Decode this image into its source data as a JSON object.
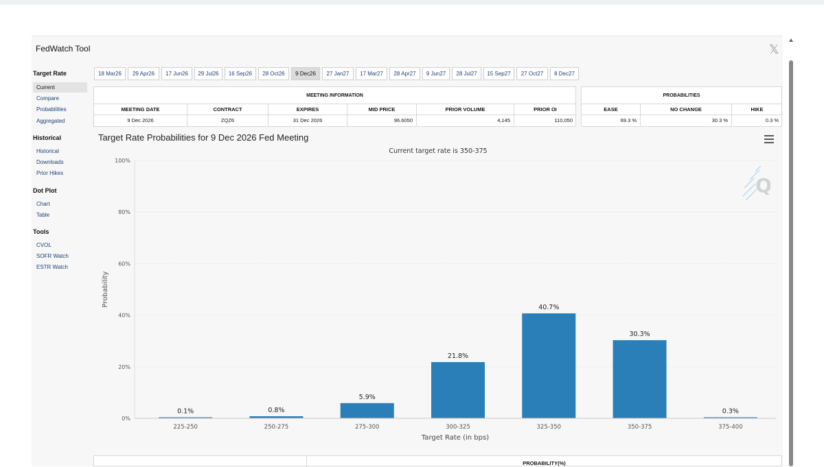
{
  "app": {
    "title": "FedWatch Tool",
    "close_label": "𝕏"
  },
  "sidebar": {
    "sections": [
      {
        "heading": "Target Rate",
        "items": [
          "Current",
          "Compare",
          "Probabilities",
          "Aggregated"
        ]
      },
      {
        "heading": "Historical",
        "items": [
          "Historical",
          "Downloads",
          "Prior Hikes"
        ]
      },
      {
        "heading": "Dot Plot",
        "items": [
          "Chart",
          "Table"
        ]
      },
      {
        "heading": "Tools",
        "items": [
          "CVOL",
          "SOFR Watch",
          "ESTR Watch"
        ]
      }
    ],
    "active_item": "Current"
  },
  "tabs": [
    "18 Mar26",
    "29 Apr26",
    "17 Jun26",
    "29 Jul26",
    "16 Sep26",
    "28 Oct26",
    "9 Dec26",
    "27 Jan27",
    "17 Mar27",
    "28 Apr27",
    "9 Jun27",
    "28 Jul27",
    "15 Sep27",
    "27 Oct27",
    "8 Dec27"
  ],
  "active_tab": "9 Dec26",
  "meeting_info": {
    "header": "MEETING INFORMATION",
    "columns": [
      "MEETING DATE",
      "CONTRACT",
      "EXPIRES",
      "MID PRICE",
      "PRIOR VOLUME",
      "PRIOR OI"
    ],
    "values": [
      "9 Dec 2026",
      "ZQZ6",
      "31 Dec 2026",
      "96.6050",
      "4,145",
      "110,050"
    ]
  },
  "probabilities": {
    "header": "PROBABILITIES",
    "columns": [
      "EASE",
      "NO CHANGE",
      "HIKE"
    ],
    "values": [
      "69.3 %",
      "30.3 %",
      "0.3 %"
    ]
  },
  "chart_data": {
    "type": "bar",
    "title": "Target Rate Probabilities for 9 Dec 2026 Fed Meeting",
    "subtitle": "Current target rate is 350-375",
    "xlabel": "Target Rate (in bps)",
    "ylabel": "Probability",
    "categories": [
      "225-250",
      "250-275",
      "275-300",
      "300-325",
      "325-350",
      "350-375",
      "375-400"
    ],
    "values": [
      0.1,
      0.8,
      5.9,
      21.8,
      40.7,
      30.3,
      0.3
    ],
    "data_labels": [
      "0.1%",
      "0.8%",
      "5.9%",
      "21.8%",
      "40.7%",
      "30.3%",
      "0.3%"
    ],
    "yticks": [
      "0%",
      "20%",
      "40%",
      "60%",
      "80%",
      "100%"
    ],
    "ylim": [
      0,
      100
    ],
    "bar_color": "#2a7fb8"
  },
  "bottom_table": {
    "header": "PROBABILITY(%)"
  }
}
